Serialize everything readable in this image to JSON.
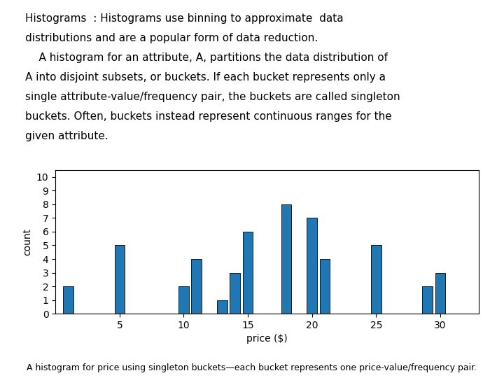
{
  "chart_data": {
    "type": "bar",
    "annotations": [
      "Histograms  : Histograms use binning to approximate  data",
      "distributions and are a popular form of data reduction.",
      "    A histogram for an attribute, A, partitions the data distribution of",
      "A into disjoint subsets, or buckets. If each bucket represents only a",
      "single attribute-value/frequency pair, the buckets are called singleton",
      "buckets. Often, buckets instead represent continuous ranges for the",
      "given attribute."
    ],
    "caption": "A histogram for price using singleton buckets—each bucket represents one price-value/frequency pair.",
    "x": [
      1,
      5,
      7,
      10,
      11,
      13,
      14,
      15,
      18,
      20,
      21,
      23,
      25,
      27,
      29,
      30
    ],
    "values": [
      2,
      5,
      0,
      2,
      4,
      1,
      3,
      6,
      8,
      7,
      4,
      0,
      5,
      0,
      2,
      3
    ],
    "xlim": [
      0,
      33
    ],
    "ylim": [
      0,
      10.5
    ],
    "xticks": [
      5,
      10,
      15,
      20,
      25,
      30
    ],
    "yticks": [
      0,
      1,
      2,
      3,
      4,
      5,
      6,
      7,
      8,
      9,
      10
    ],
    "xlabel": "price ($)",
    "ylabel": "count"
  }
}
